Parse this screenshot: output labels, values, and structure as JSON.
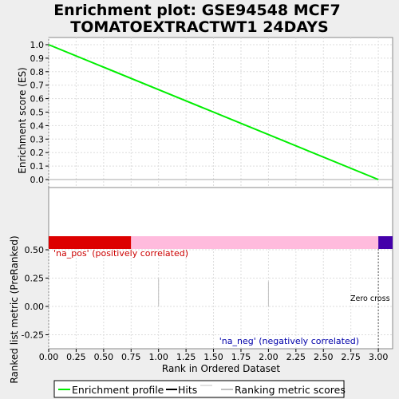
{
  "chart_data": [
    {
      "type": "line",
      "panel": "enrichment",
      "title": "Enrichment plot: GSE94548 MCF7\nTOMATOEXTRACTWT1 24DAYS",
      "ylabel": "Enrichment score (ES)",
      "ylim": [
        -0.05,
        1.05
      ],
      "yticks": [
        1.0,
        0.9,
        0.8,
        0.7,
        0.6,
        0.5,
        0.4,
        0.3,
        0.2,
        0.1,
        0.0
      ],
      "ytick_labels": [
        "1.0",
        "0.9",
        "0.8",
        "0.7",
        "0.6",
        "0.5",
        "0.4",
        "0.3",
        "0.2",
        "0.1",
        "0.0"
      ],
      "series": [
        {
          "name": "Enrichment profile",
          "color": "#00ee00",
          "x": [
            0.0,
            3.0
          ],
          "y": [
            1.0,
            0.0
          ]
        }
      ],
      "grid": true
    },
    {
      "type": "line",
      "panel": "ranked-list",
      "xlabel": "Rank in Ordered Dataset",
      "ylabel": "Ranked list metric (PreRanked)",
      "xlim": [
        0.0,
        3.13
      ],
      "ylim": [
        -0.3,
        0.63
      ],
      "xticks": [
        0.0,
        0.25,
        0.5,
        0.75,
        1.0,
        1.25,
        1.5,
        1.75,
        2.0,
        2.25,
        2.5,
        2.75,
        3.0
      ],
      "xtick_labels": [
        "0.00",
        "0.25",
        "0.50",
        "0.75",
        "1.00",
        "1.25",
        "1.50",
        "1.75",
        "2.00",
        "2.25",
        "2.50",
        "2.75",
        "3.00"
      ],
      "yticks": [
        0.5,
        0.25,
        0.0,
        -0.25
      ],
      "ytick_labels": [
        "0.50",
        "0.25",
        "0.00",
        "-0.25"
      ],
      "color_bar": [
        {
          "from": 0.0,
          "to": 0.75,
          "color": "#dd0000"
        },
        {
          "from": 0.75,
          "to": 3.0,
          "color": "#ffbbdd"
        },
        {
          "from": 3.0,
          "to": 3.13,
          "color": "#4400aa"
        }
      ],
      "metric_bars": [
        {
          "x": 1.0,
          "value": 0.25
        },
        {
          "x": 2.0,
          "value": 0.22
        }
      ],
      "zero_cross": 3.0,
      "annotations": {
        "pos": "'na_pos' (positively correlated)",
        "neg": "'na_neg' (negatively correlated)",
        "zero": "Zero cross at 3"
      },
      "grid": true
    }
  ],
  "legend": {
    "items": [
      {
        "label": "Enrichment profile",
        "color": "#00ee00"
      },
      {
        "label": "Hits",
        "color": "#000000"
      },
      {
        "label": "Ranking metric scores",
        "color": "#c0c0c0"
      }
    ]
  },
  "colors": {
    "pos_text": "#cc0000",
    "neg_text": "#0000aa",
    "background": "#eeeeee"
  }
}
